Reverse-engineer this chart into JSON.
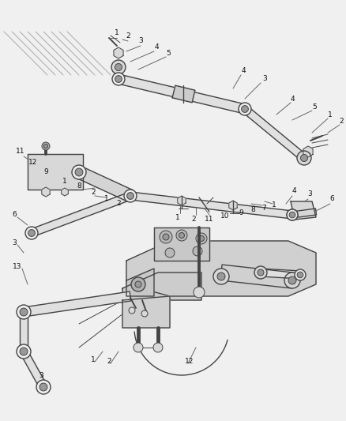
{
  "bg_color": "#f0f0f0",
  "line_color": "#444444",
  "part_fill": "#d8d8d8",
  "part_dark": "#999999",
  "part_light": "#eeeeee",
  "fig_width": 4.38,
  "fig_height": 5.33,
  "dpi": 100,
  "ax_bg": "#f0f0f0",
  "callout_color": "#666666",
  "label_color": "#111111",
  "label_fs": 6.5,
  "lw_thick": 1.4,
  "lw_med": 1.0,
  "lw_thin": 0.7
}
